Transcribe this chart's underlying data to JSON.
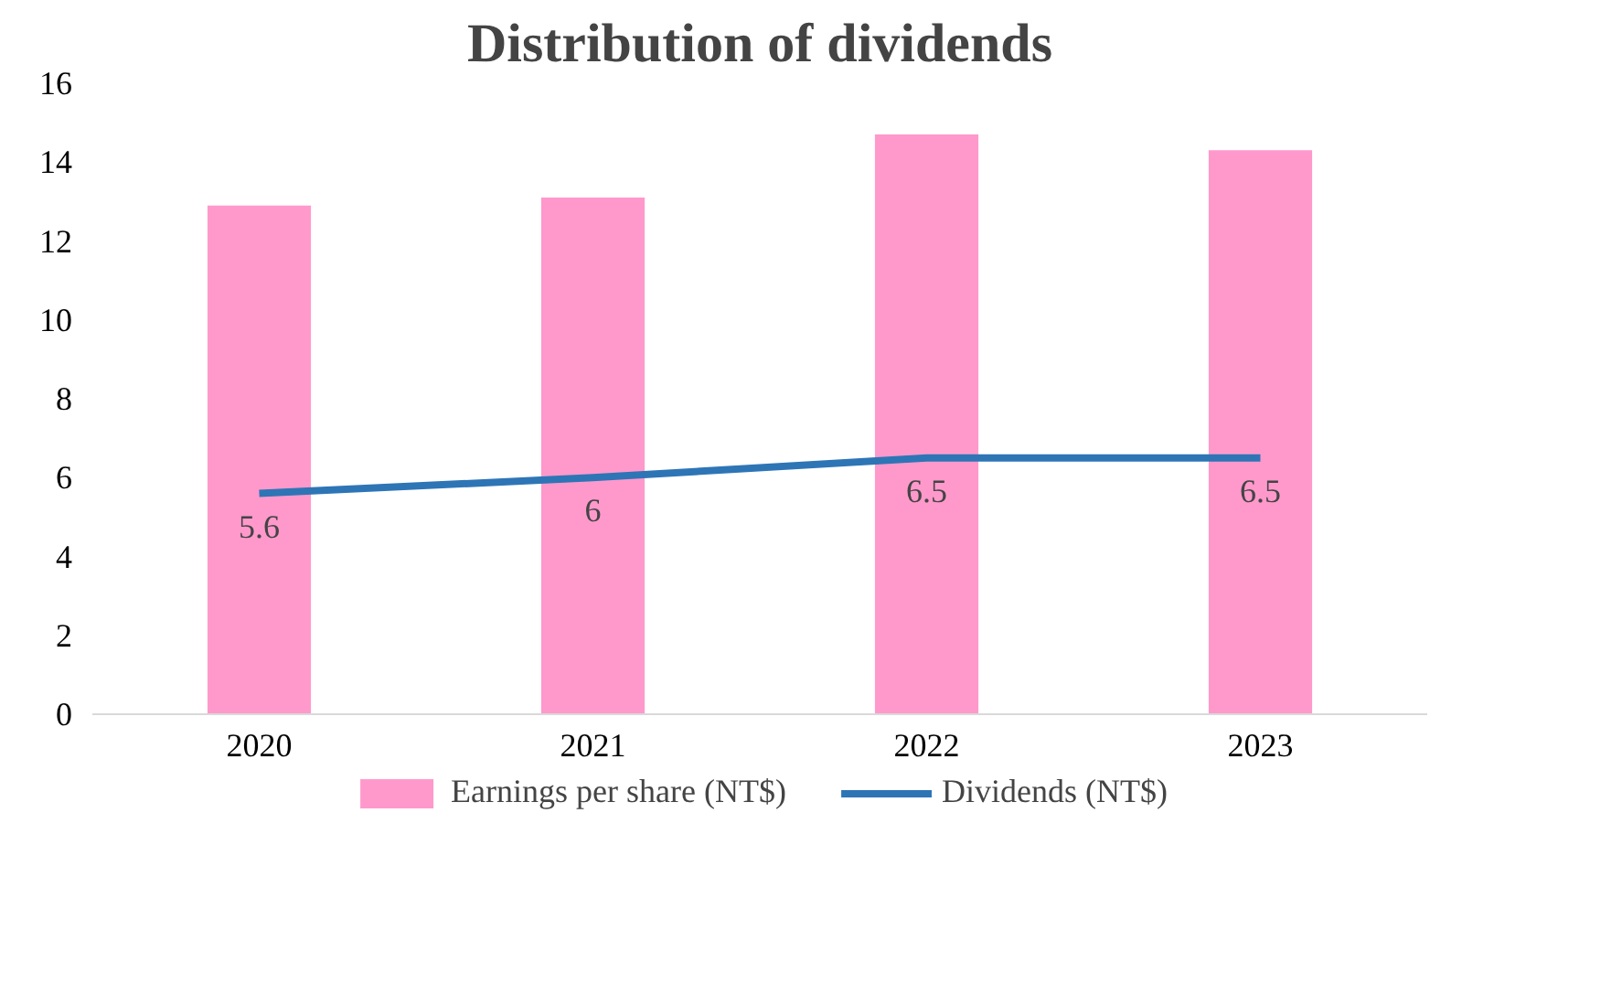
{
  "chart_data": {
    "type": "bar",
    "title": "Distribution of dividends",
    "categories": [
      "2020",
      "2021",
      "2022",
      "2023"
    ],
    "series": [
      {
        "name": "Earnings per share (NT$)",
        "color": "#ff99cc",
        "values": [
          12.9,
          13.1,
          14.7,
          14.3
        ]
      },
      {
        "name": "Dividends (NT$)",
        "type": "line",
        "color": "#2e75b6",
        "values": [
          5.6,
          6,
          6.5,
          6.5
        ],
        "value_labels": [
          "5.6",
          "6",
          "6.5",
          "6.5"
        ]
      }
    ],
    "ylim": [
      0,
      16
    ],
    "yticks": [
      0,
      2,
      4,
      6,
      8,
      10,
      12,
      14,
      16
    ],
    "grid": false,
    "legend": "bottom"
  }
}
